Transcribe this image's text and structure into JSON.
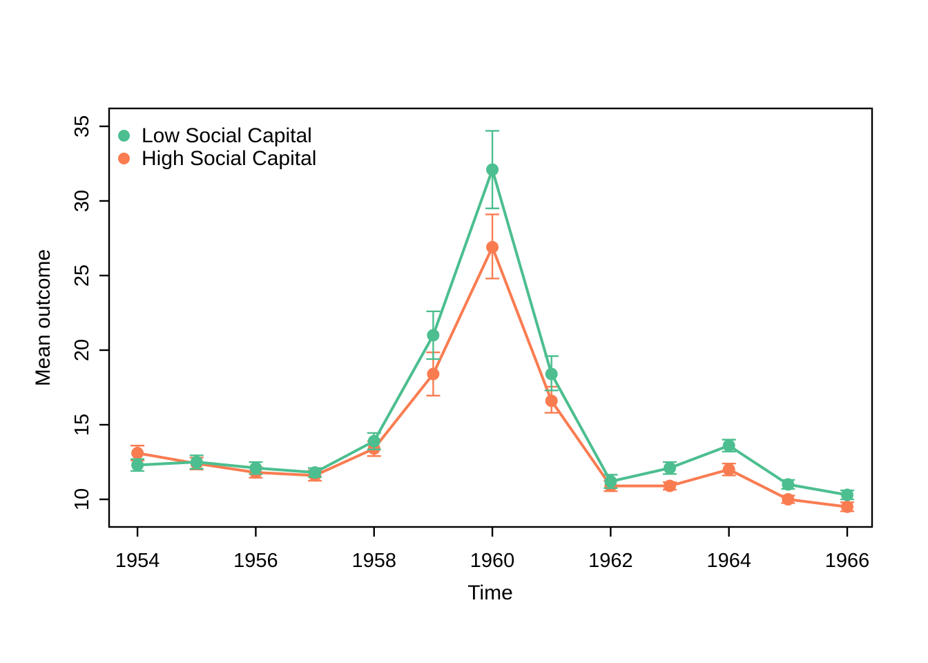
{
  "chart_data": {
    "type": "line",
    "title": "",
    "xlabel": "Time",
    "ylabel": "Mean outcome",
    "x": [
      1954,
      1955,
      1956,
      1957,
      1958,
      1959,
      1960,
      1961,
      1962,
      1963,
      1964,
      1965,
      1966
    ],
    "x_ticks": [
      1954,
      1956,
      1958,
      1960,
      1962,
      1964,
      1966
    ],
    "y_ticks": [
      10,
      15,
      20,
      25,
      30,
      35
    ],
    "xlim": [
      1953.52,
      1966.42
    ],
    "ylim": [
      8.15,
      36.2
    ],
    "grid": false,
    "legend_position": "top-left",
    "error_bars": true,
    "series": [
      {
        "name": "Low Social Capital",
        "color": "#4CBE8F",
        "values": [
          12.3,
          12.5,
          12.1,
          11.8,
          13.9,
          21.0,
          32.1,
          18.4,
          11.2,
          12.1,
          13.6,
          11.0,
          10.3
        ],
        "ci_lower": [
          11.9,
          12.05,
          11.7,
          11.5,
          13.35,
          19.4,
          29.5,
          17.3,
          10.75,
          11.7,
          13.2,
          10.7,
          10.0
        ],
        "ci_upper": [
          12.7,
          12.95,
          12.5,
          12.1,
          14.45,
          22.6,
          34.7,
          19.6,
          11.65,
          12.5,
          14.0,
          11.3,
          10.6
        ]
      },
      {
        "name": "High Social Capital",
        "color": "#F97C51",
        "values": [
          13.1,
          12.4,
          11.8,
          11.6,
          13.4,
          18.4,
          26.9,
          16.6,
          10.9,
          10.9,
          12.0,
          10.0,
          9.5
        ],
        "ci_lower": [
          12.6,
          12.0,
          11.45,
          11.25,
          12.9,
          16.95,
          24.8,
          15.8,
          10.55,
          10.65,
          11.6,
          9.75,
          9.2
        ],
        "ci_upper": [
          13.6,
          12.8,
          12.15,
          11.95,
          13.9,
          19.85,
          29.1,
          17.55,
          11.25,
          11.15,
          12.4,
          10.25,
          9.8
        ]
      }
    ],
    "axis_color": "#000000",
    "tick_font_size": 29,
    "label_font_size": 30
  }
}
